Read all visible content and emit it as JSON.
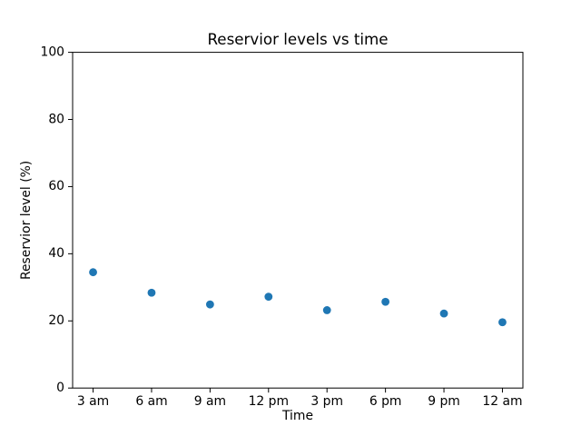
{
  "chart_data": {
    "type": "scatter",
    "title": "Reservior levels vs time",
    "xlabel": "Time",
    "ylabel": "Reservior level (%)",
    "categories": [
      "3 am",
      "6 am",
      "9 am",
      "12 pm",
      "3 pm",
      "6 pm",
      "9 pm",
      "12 am"
    ],
    "values": [
      34.5,
      28.4,
      24.9,
      27.2,
      23.2,
      25.7,
      22.2,
      19.6
    ],
    "ylim": [
      0,
      100
    ],
    "y_ticks": [
      0,
      20,
      40,
      60,
      80,
      100
    ],
    "marker_color": "#1f77b4",
    "axis_color": "#000000",
    "background_color": "#ffffff",
    "grid": false,
    "legend": null
  }
}
